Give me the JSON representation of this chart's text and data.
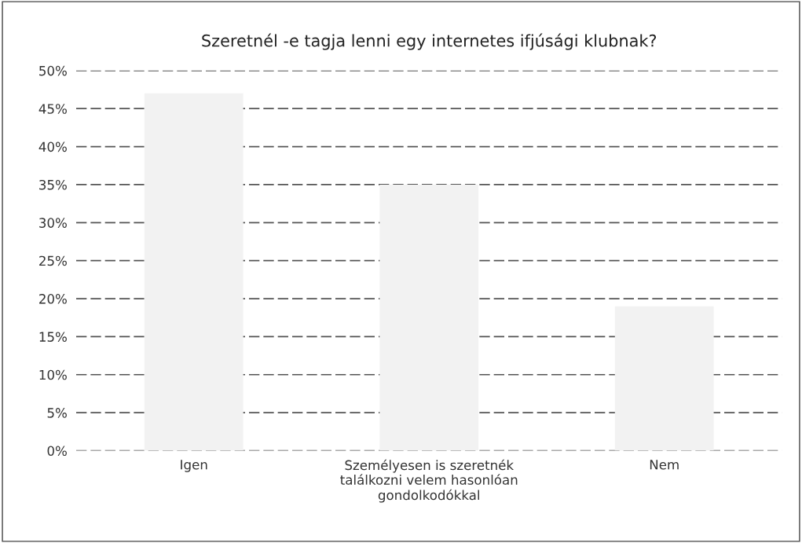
{
  "chart_data": {
    "type": "bar",
    "title": "Szeretnél -e tagja lenni egy internetes ifjúsági klubnak?",
    "categories": [
      "Igen",
      "Személyesen is szeretnék\ntalálkozni velem hasonlóan\ngondolkodókkal",
      "Nem"
    ],
    "values": [
      0.47,
      0.35,
      0.19
    ],
    "color": "#f2f2f2",
    "ylim": [
      0,
      0.5
    ],
    "yticks": [
      {
        "value": 0,
        "label": "0%"
      },
      {
        "value": 0.05,
        "label": "5%"
      },
      {
        "value": 0.1,
        "label": "10%"
      },
      {
        "value": 0.15,
        "label": "15%"
      },
      {
        "value": 0.2,
        "label": "20%"
      },
      {
        "value": 0.25,
        "label": "25%"
      },
      {
        "value": 0.3,
        "label": "30%"
      },
      {
        "value": 0.35,
        "label": "35%"
      },
      {
        "value": 0.4,
        "label": "40%"
      },
      {
        "value": 0.45,
        "label": "45%"
      },
      {
        "value": 0.5,
        "label": "50%"
      }
    ],
    "grid": "y"
  }
}
